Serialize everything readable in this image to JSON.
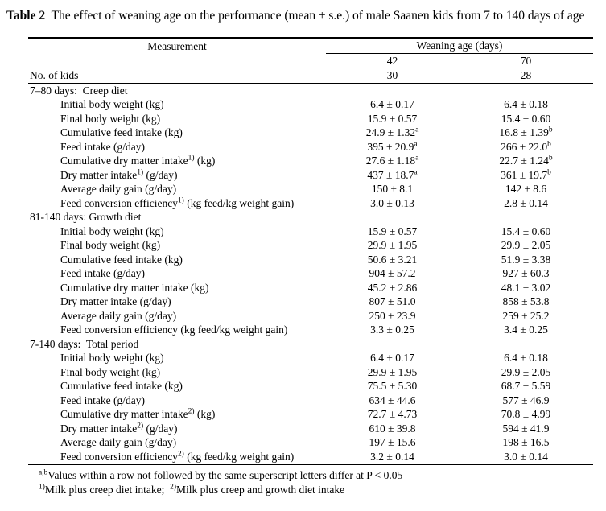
{
  "title": {
    "label": "Table 2",
    "text": "  The effect of weaning age on the performance (mean ± s.e.) of male Saanen kids from 7 to 140 days of age"
  },
  "table": {
    "measurement_header": "Measurement",
    "group_header": "Weaning age (days)",
    "col_headers": [
      "42",
      "70"
    ],
    "no_of_kids": {
      "label": "No. of kids",
      "values": [
        "30",
        "28"
      ]
    },
    "sections": [
      {
        "header": "7–80 days:  Creep diet",
        "rows": [
          {
            "label_pre": "Initial body weight (kg)",
            "label_sup": "",
            "label_post": "",
            "v1": "6.4 ± 0.17",
            "v1_sup": "",
            "v2": "6.4 ± 0.18",
            "v2_sup": ""
          },
          {
            "label_pre": "Final body weight (kg)",
            "label_sup": "",
            "label_post": "",
            "v1": "15.9 ± 0.57",
            "v1_sup": "",
            "v2": "15.4 ± 0.60",
            "v2_sup": ""
          },
          {
            "label_pre": "Cumulative feed intake (kg)",
            "label_sup": "",
            "label_post": "",
            "v1": "24.9 ± 1.32",
            "v1_sup": "a",
            "v2": "16.8 ± 1.39",
            "v2_sup": "b"
          },
          {
            "label_pre": "Feed intake (g/day)",
            "label_sup": "",
            "label_post": "",
            "v1": "395 ± 20.9",
            "v1_sup": "a",
            "v2": "266 ± 22.0",
            "v2_sup": "b"
          },
          {
            "label_pre": "Cumulative dry matter intake",
            "label_sup": "1)",
            "label_post": " (kg)",
            "v1": "27.6 ± 1.18",
            "v1_sup": "a",
            "v2": "22.7 ± 1.24",
            "v2_sup": "b"
          },
          {
            "label_pre": "Dry matter intake",
            "label_sup": "1)",
            "label_post": " (g/day)",
            "v1": "437 ± 18.7",
            "v1_sup": "a",
            "v2": "361 ± 19.7",
            "v2_sup": "b"
          },
          {
            "label_pre": "Average daily gain (g/day)",
            "label_sup": "",
            "label_post": "",
            "v1": "150 ± 8.1",
            "v1_sup": "",
            "v2": "142 ± 8.6",
            "v2_sup": ""
          },
          {
            "label_pre": "Feed conversion efficiency",
            "label_sup": "1)",
            "label_post": " (kg feed/kg weight gain)",
            "v1": "3.0 ± 0.13",
            "v1_sup": "",
            "v2": "2.8 ± 0.14",
            "v2_sup": ""
          }
        ]
      },
      {
        "header": "81-140 days: Growth diet",
        "rows": [
          {
            "label_pre": "Initial body weight (kg)",
            "label_sup": "",
            "label_post": "",
            "v1": "15.9 ± 0.57",
            "v1_sup": "",
            "v2": "15.4 ± 0.60",
            "v2_sup": ""
          },
          {
            "label_pre": "Final body weight (kg)",
            "label_sup": "",
            "label_post": "",
            "v1": "29.9 ± 1.95",
            "v1_sup": "",
            "v2": "29.9 ± 2.05",
            "v2_sup": ""
          },
          {
            "label_pre": "Cumulative feed intake (kg)",
            "label_sup": "",
            "label_post": "",
            "v1": "50.6 ± 3.21",
            "v1_sup": "",
            "v2": "51.9 ± 3.38",
            "v2_sup": ""
          },
          {
            "label_pre": "Feed intake (g/day)",
            "label_sup": "",
            "label_post": "",
            "v1": "904 ± 57.2",
            "v1_sup": "",
            "v2": "927 ± 60.3",
            "v2_sup": ""
          },
          {
            "label_pre": "Cumulative dry matter intake (kg)",
            "label_sup": "",
            "label_post": "",
            "v1": "45.2 ± 2.86",
            "v1_sup": "",
            "v2": "48.1 ± 3.02",
            "v2_sup": ""
          },
          {
            "label_pre": "Dry matter intake (g/day)",
            "label_sup": "",
            "label_post": "",
            "v1": "807 ± 51.0",
            "v1_sup": "",
            "v2": "858 ± 53.8",
            "v2_sup": ""
          },
          {
            "label_pre": "Average daily gain (g/day)",
            "label_sup": "",
            "label_post": "",
            "v1": "250 ± 23.9",
            "v1_sup": "",
            "v2": "259 ± 25.2",
            "v2_sup": ""
          },
          {
            "label_pre": "Feed conversion efficiency (kg feed/kg weight gain)",
            "label_sup": "",
            "label_post": "",
            "v1": "3.3 ± 0.25",
            "v1_sup": "",
            "v2": "3.4 ± 0.25",
            "v2_sup": ""
          }
        ]
      },
      {
        "header": "7-140 days:  Total period",
        "rows": [
          {
            "label_pre": "Initial body weight (kg)",
            "label_sup": "",
            "label_post": "",
            "v1": "6.4 ± 0.17",
            "v1_sup": "",
            "v2": "6.4 ± 0.18",
            "v2_sup": ""
          },
          {
            "label_pre": "Final body weight (kg)",
            "label_sup": "",
            "label_post": "",
            "v1": "29.9 ± 1.95",
            "v1_sup": "",
            "v2": "29.9 ± 2.05",
            "v2_sup": ""
          },
          {
            "label_pre": "Cumulative feed intake (kg)",
            "label_sup": "",
            "label_post": "",
            "v1": "75.5 ± 5.30",
            "v1_sup": "",
            "v2": "68.7 ± 5.59",
            "v2_sup": ""
          },
          {
            "label_pre": "Feed intake (g/day)",
            "label_sup": "",
            "label_post": "",
            "v1": "634 ± 44.6",
            "v1_sup": "",
            "v2": "577 ± 46.9",
            "v2_sup": ""
          },
          {
            "label_pre": "Cumulative dry matter intake",
            "label_sup": "2)",
            "label_post": " (kg)",
            "v1": "72.7 ± 4.73",
            "v1_sup": "",
            "v2": "70.8 ± 4.99",
            "v2_sup": ""
          },
          {
            "label_pre": "Dry matter intake",
            "label_sup": "2)",
            "label_post": " (g/day)",
            "v1": "610 ± 39.8",
            "v1_sup": "",
            "v2": "594 ± 41.9",
            "v2_sup": ""
          },
          {
            "label_pre": "Average daily gain (g/day)",
            "label_sup": "",
            "label_post": "",
            "v1": "197 ± 15.6",
            "v1_sup": "",
            "v2": "198 ± 16.5",
            "v2_sup": ""
          },
          {
            "label_pre": "Feed conversion efficiency",
            "label_sup": "2)",
            "label_post": " (kg feed/kg weight gain)",
            "v1": "3.2 ± 0.14",
            "v1_sup": "",
            "v2": "3.0 ± 0.14",
            "v2_sup": ""
          }
        ]
      }
    ]
  },
  "footnotes": [
    [
      {
        "sup": "a,b"
      },
      {
        "t": "Values within a row not followed by the same superscript letters differ at P < 0.05"
      }
    ],
    [
      {
        "sup": "1)"
      },
      {
        "t": "Milk plus creep diet intake;  "
      },
      {
        "sup": "2)"
      },
      {
        "t": "Milk plus creep and growth diet intake"
      }
    ]
  ]
}
